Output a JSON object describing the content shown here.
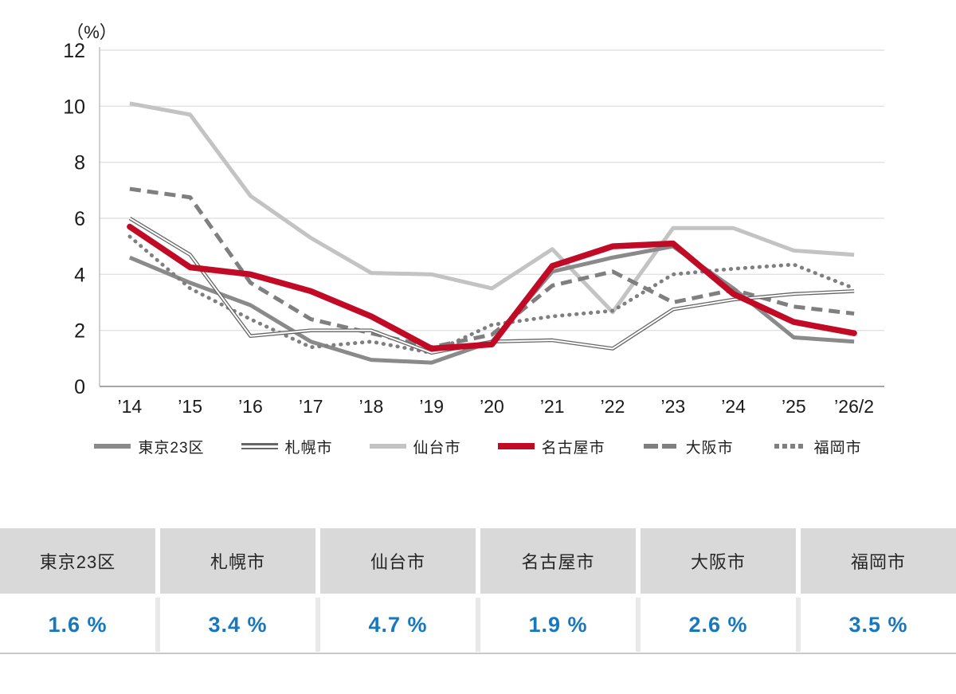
{
  "chart_data": {
    "type": "line",
    "title": "",
    "ylabel": "（%）",
    "xlabel": "",
    "ylim": [
      0,
      12
    ],
    "y_tick_step": 2,
    "y_tick_labels": [
      "12",
      "10",
      "8",
      "6",
      "4",
      "2",
      "0"
    ],
    "grid": true,
    "legend_position": "bottom",
    "categories": [
      "’14",
      "’15",
      "’16",
      "’17",
      "’18",
      "’19",
      "’20",
      "’21",
      "’22",
      "’23",
      "’24",
      "’25",
      "’26/2"
    ],
    "series": [
      {
        "name": "東京23区",
        "style": "solid-thick",
        "color": "#8a8a8a",
        "values": [
          4.6,
          3.7,
          2.9,
          1.6,
          0.95,
          0.85,
          1.6,
          4.1,
          4.6,
          5.0,
          3.5,
          1.75,
          1.6
        ]
      },
      {
        "name": "札幌市",
        "style": "double-line",
        "color": "#666666",
        "values": [
          6.0,
          4.7,
          1.8,
          2.0,
          2.0,
          1.2,
          1.6,
          1.65,
          1.35,
          2.75,
          3.1,
          3.3,
          3.4
        ]
      },
      {
        "name": "仙台市",
        "style": "solid-thick",
        "color": "#c3c3c3",
        "values": [
          10.1,
          9.7,
          6.8,
          5.3,
          4.05,
          4.0,
          3.5,
          4.9,
          2.65,
          5.65,
          5.65,
          4.85,
          4.7
        ]
      },
      {
        "name": "名古屋市",
        "style": "solid-extra-thick",
        "color": "#c00a26",
        "values": [
          5.7,
          4.25,
          4.0,
          3.4,
          2.5,
          1.35,
          1.5,
          4.3,
          5.0,
          5.1,
          3.3,
          2.3,
          1.9
        ]
      },
      {
        "name": "大阪市",
        "style": "dashed",
        "color": "#7f7f7f",
        "values": [
          7.05,
          6.75,
          3.7,
          2.4,
          1.9,
          1.4,
          1.85,
          3.6,
          4.1,
          3.0,
          3.45,
          2.85,
          2.6
        ]
      },
      {
        "name": "福岡市",
        "style": "dotted",
        "color": "#7f7f7f",
        "values": [
          5.35,
          3.5,
          2.4,
          1.4,
          1.6,
          1.2,
          2.2,
          2.5,
          2.7,
          4.0,
          4.2,
          4.35,
          3.5
        ]
      }
    ]
  },
  "summary_table": {
    "header_bg": "#d9d9d9",
    "value_color": "#1878be",
    "columns": [
      {
        "city": "東京23区",
        "value": "1.6 %"
      },
      {
        "city": "札幌市",
        "value": "3.4 %"
      },
      {
        "city": "仙台市",
        "value": "4.7 %"
      },
      {
        "city": "名古屋市",
        "value": "1.9 %"
      },
      {
        "city": "大阪市",
        "value": "2.6 %"
      },
      {
        "city": "福岡市",
        "value": "3.5 %"
      }
    ]
  }
}
